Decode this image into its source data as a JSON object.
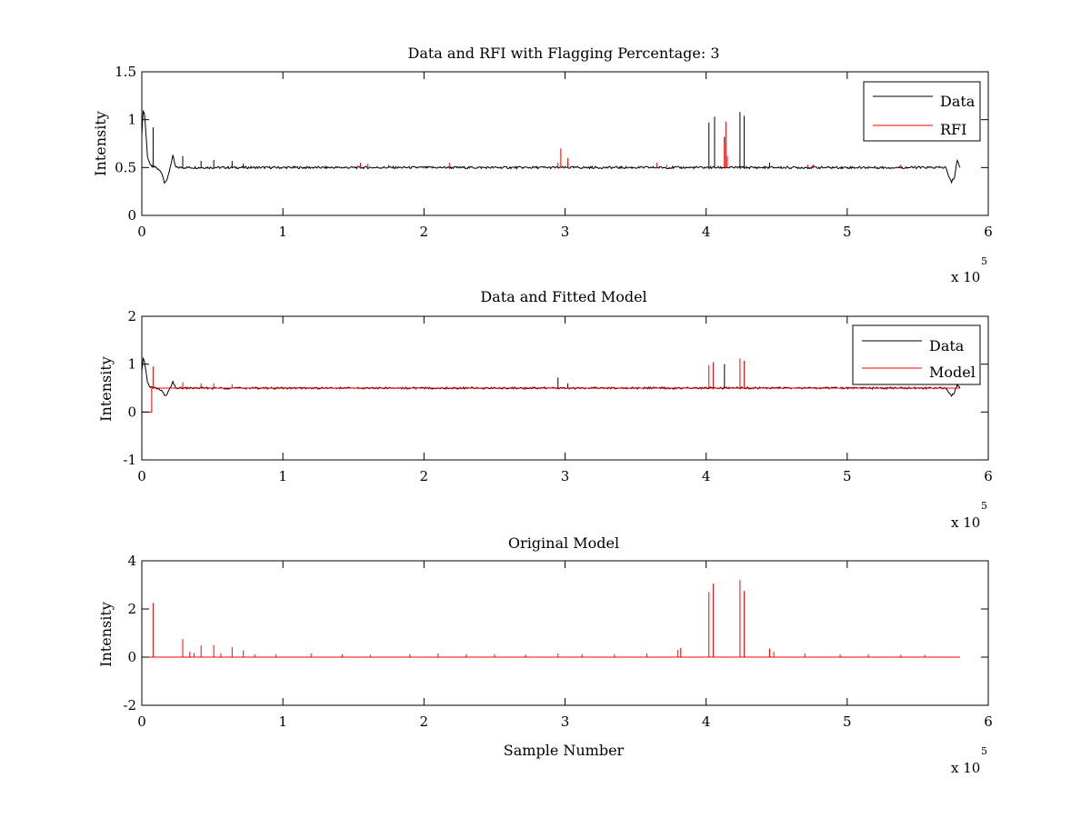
{
  "figure": {
    "background": "#ffffff",
    "line_colors": {
      "data": "#000000",
      "rfi": "#ff0000"
    }
  },
  "chart_data": [
    {
      "type": "line",
      "title": "Data and RFI with Flagging Percentage: 3",
      "xlabel": "",
      "ylabel": "Intensity",
      "xlim": [
        0,
        6
      ],
      "ylim": [
        0,
        1.5
      ],
      "xticks": [
        "0",
        "1",
        "2",
        "3",
        "4",
        "5",
        "6"
      ],
      "yticks": [
        "0",
        "0.5",
        "1",
        "1.5"
      ],
      "x_multiplier": "x 10",
      "x_exponent": "5",
      "grid": false,
      "legend": "top-right",
      "series": [
        {
          "name": "Data",
          "color": "#000000",
          "baseline": 0.5,
          "points": [
            [
              0,
              0.85
            ],
            [
              0.01,
              1.1
            ],
            [
              0.02,
              1.05
            ],
            [
              0.04,
              0.62
            ],
            [
              0.06,
              0.52
            ],
            [
              0.1,
              0.5
            ],
            [
              0.14,
              0.45
            ],
            [
              0.16,
              0.35
            ],
            [
              0.18,
              0.37
            ],
            [
              0.2,
              0.5
            ],
            [
              0.22,
              0.62
            ],
            [
              0.24,
              0.5
            ],
            [
              5.7,
              0.5
            ],
            [
              5.72,
              0.4
            ],
            [
              5.74,
              0.35
            ],
            [
              5.76,
              0.4
            ],
            [
              5.78,
              0.58
            ],
            [
              5.8,
              0.5
            ]
          ],
          "spikes": [
            [
              0.08,
              0.92
            ],
            [
              0.29,
              0.62
            ],
            [
              0.42,
              0.57
            ],
            [
              0.51,
              0.58
            ],
            [
              0.64,
              0.57
            ],
            [
              0.72,
              0.54
            ],
            [
              3.02,
              0.55
            ],
            [
              4.02,
              0.97
            ],
            [
              4.06,
              1.03
            ],
            [
              4.13,
              0.82
            ],
            [
              4.24,
              1.08
            ],
            [
              4.27,
              1.04
            ],
            [
              4.45,
              0.55
            ]
          ]
        },
        {
          "name": "RFI",
          "color": "#ff0000",
          "spikes": [
            [
              1.55,
              0.55
            ],
            [
              1.6,
              0.54
            ],
            [
              1.75,
              0.53
            ],
            [
              2.18,
              0.55
            ],
            [
              2.95,
              0.55
            ],
            [
              2.97,
              0.7
            ],
            [
              3.02,
              0.6
            ],
            [
              3.65,
              0.55
            ],
            [
              3.72,
              0.53
            ],
            [
              4.13,
              0.75
            ],
            [
              4.14,
              0.98
            ],
            [
              4.15,
              0.62
            ],
            [
              4.72,
              0.53
            ],
            [
              4.76,
              0.53
            ],
            [
              5.15,
              0.52
            ],
            [
              5.38,
              0.53
            ],
            [
              5.48,
              0.52
            ]
          ]
        }
      ]
    },
    {
      "type": "line",
      "title": "Data and Fitted Model",
      "xlabel": "",
      "ylabel": "Intensity",
      "xlim": [
        0,
        6
      ],
      "ylim": [
        -1,
        2
      ],
      "xticks": [
        "0",
        "1",
        "2",
        "3",
        "4",
        "5",
        "6"
      ],
      "yticks": [
        "-1",
        "0",
        "1",
        "2"
      ],
      "x_multiplier": "x 10",
      "x_exponent": "5",
      "grid": false,
      "legend": "top-right",
      "series": [
        {
          "name": "Data",
          "color": "#000000",
          "baseline": 0.5,
          "points": [
            [
              0,
              0.85
            ],
            [
              0.01,
              1.1
            ],
            [
              0.02,
              1.05
            ],
            [
              0.04,
              0.62
            ],
            [
              0.06,
              0.52
            ],
            [
              0.1,
              0.5
            ],
            [
              0.14,
              0.45
            ],
            [
              0.16,
              0.35
            ],
            [
              0.18,
              0.37
            ],
            [
              0.2,
              0.5
            ],
            [
              0.22,
              0.62
            ],
            [
              0.24,
              0.5
            ],
            [
              5.7,
              0.5
            ],
            [
              5.72,
              0.4
            ],
            [
              5.74,
              0.35
            ],
            [
              5.76,
              0.4
            ],
            [
              5.78,
              0.58
            ],
            [
              5.8,
              0.5
            ]
          ],
          "spikes": [
            [
              2.95,
              0.72
            ],
            [
              3.02,
              0.6
            ],
            [
              4.13,
              1.0
            ]
          ]
        },
        {
          "name": "Model",
          "color": "#ff0000",
          "baseline": 0.5,
          "points": [
            [
              0,
              0.0
            ],
            [
              0.07,
              0.0
            ],
            [
              0.07,
              0.5
            ],
            [
              5.8,
              0.5
            ]
          ],
          "spikes": [
            [
              0.08,
              0.95
            ],
            [
              0.29,
              0.62
            ],
            [
              0.42,
              0.6
            ],
            [
              0.51,
              0.6
            ],
            [
              0.64,
              0.58
            ],
            [
              4.02,
              0.98
            ],
            [
              4.05,
              1.04
            ],
            [
              4.24,
              1.12
            ],
            [
              4.27,
              1.07
            ]
          ]
        }
      ]
    },
    {
      "type": "line",
      "title": "Original Model",
      "xlabel": "Sample Number",
      "ylabel": "Intensity",
      "xlim": [
        0,
        6
      ],
      "ylim": [
        -2,
        4
      ],
      "xticks": [
        "0",
        "1",
        "2",
        "3",
        "4",
        "5",
        "6"
      ],
      "yticks": [
        "-2",
        "0",
        "2",
        "4"
      ],
      "x_multiplier": "x 10",
      "x_exponent": "5",
      "grid": false,
      "legend": "none",
      "series": [
        {
          "name": "",
          "color": "#ff0000",
          "baseline": 0.0,
          "points": [
            [
              0,
              0.0
            ],
            [
              5.8,
              0.0
            ]
          ],
          "spikes": [
            [
              0.08,
              2.25
            ],
            [
              0.29,
              0.75
            ],
            [
              0.34,
              0.22
            ],
            [
              0.37,
              0.18
            ],
            [
              0.42,
              0.48
            ],
            [
              0.51,
              0.5
            ],
            [
              0.56,
              0.15
            ],
            [
              0.64,
              0.42
            ],
            [
              0.72,
              0.28
            ],
            [
              0.8,
              0.12
            ],
            [
              0.95,
              0.12
            ],
            [
              1.2,
              0.15
            ],
            [
              1.42,
              0.12
            ],
            [
              1.62,
              0.1
            ],
            [
              1.9,
              0.12
            ],
            [
              2.1,
              0.15
            ],
            [
              2.3,
              0.12
            ],
            [
              2.5,
              0.12
            ],
            [
              2.72,
              0.1
            ],
            [
              2.95,
              0.15
            ],
            [
              3.12,
              0.12
            ],
            [
              3.35,
              0.12
            ],
            [
              3.58,
              0.15
            ],
            [
              3.8,
              0.3
            ],
            [
              3.82,
              0.38
            ],
            [
              4.02,
              2.7
            ],
            [
              4.05,
              3.05
            ],
            [
              4.24,
              3.2
            ],
            [
              4.27,
              2.75
            ],
            [
              4.45,
              0.35
            ],
            [
              4.48,
              0.22
            ],
            [
              4.7,
              0.15
            ],
            [
              4.95,
              0.12
            ],
            [
              5.15,
              0.12
            ],
            [
              5.38,
              0.1
            ],
            [
              5.55,
              0.1
            ]
          ]
        }
      ]
    }
  ]
}
